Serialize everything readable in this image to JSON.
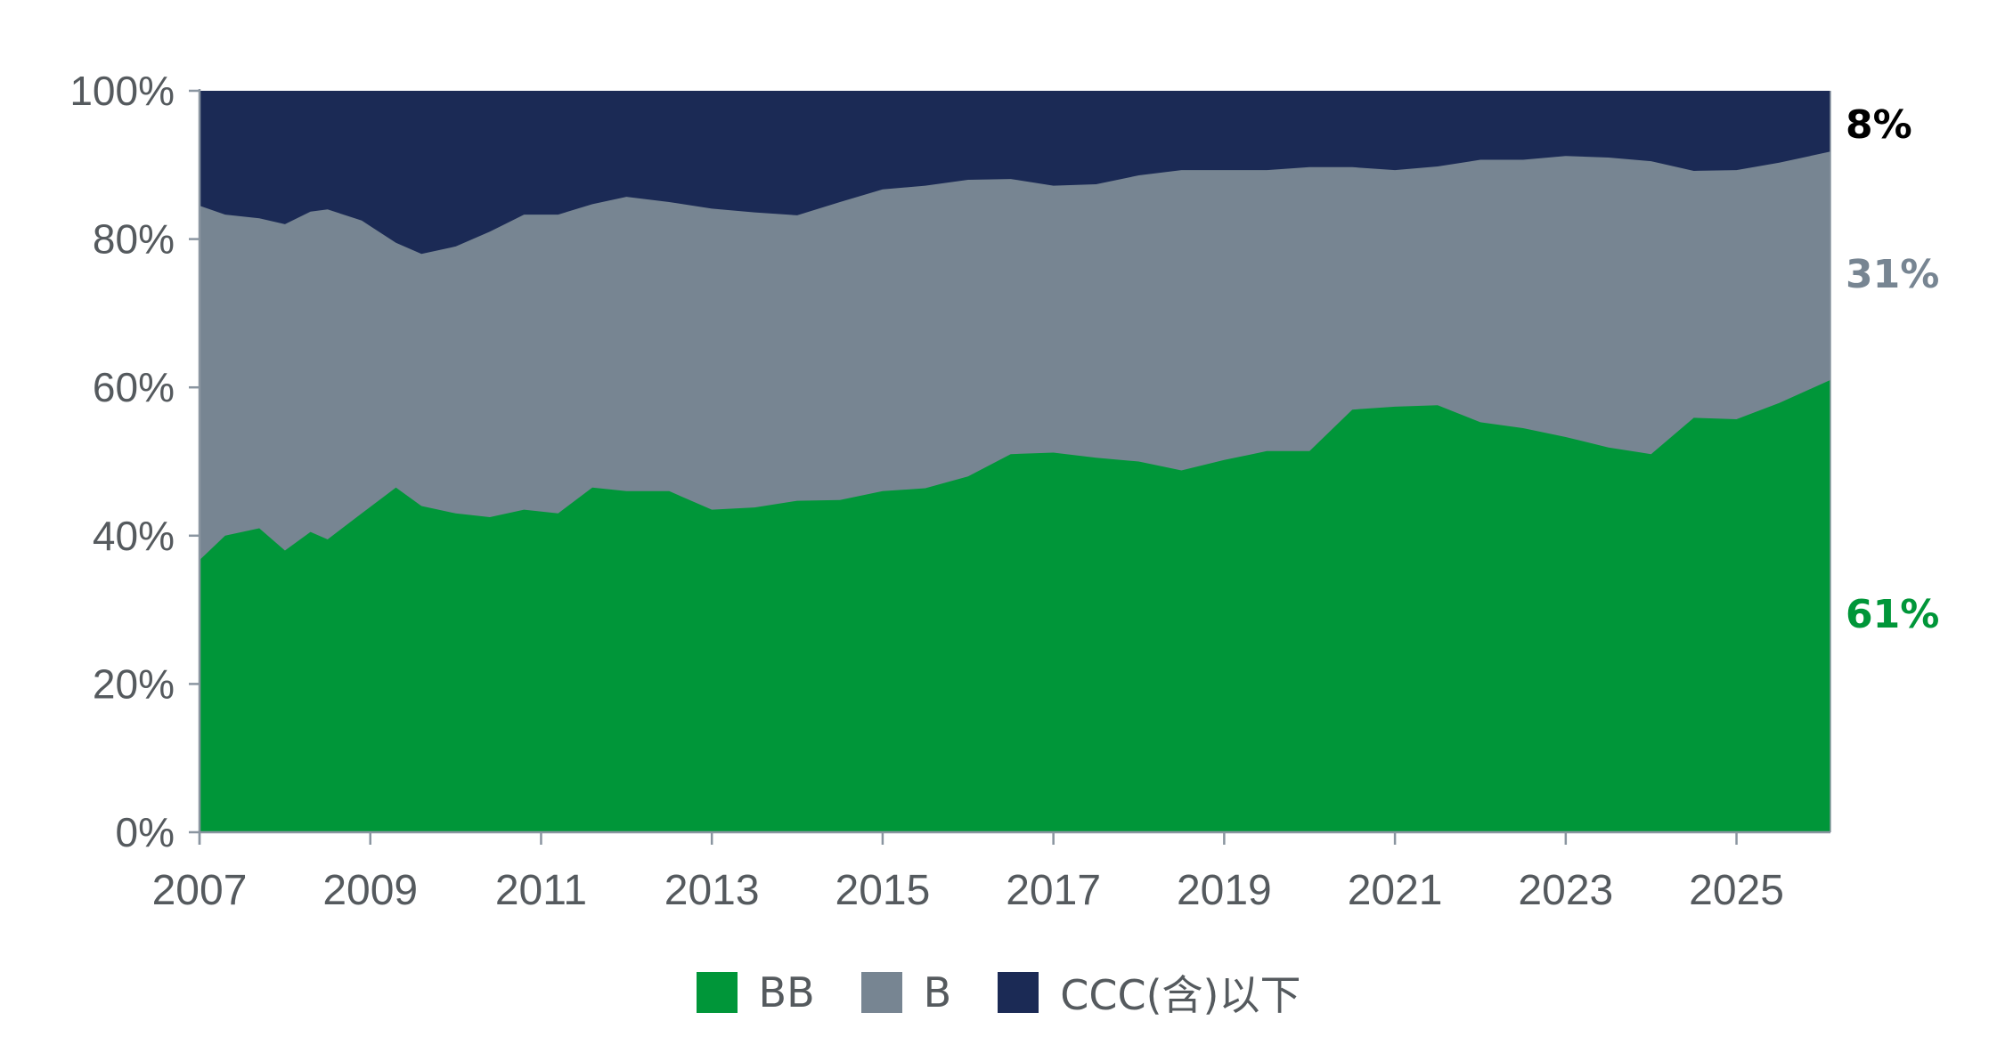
{
  "chart_data": {
    "type": "area",
    "stacked": true,
    "normalized": true,
    "title": "",
    "xlabel": "",
    "ylabel": "",
    "ylim": [
      0,
      100
    ],
    "xlim": [
      2007,
      2026.1
    ],
    "y_ticks": [
      "0%",
      "20%",
      "40%",
      "60%",
      "80%",
      "100%"
    ],
    "x_ticks": [
      "2007",
      "2009",
      "2011",
      "2013",
      "2015",
      "2017",
      "2019",
      "2021",
      "2023",
      "2025"
    ],
    "grid": false,
    "legend_position": "bottom",
    "x": [
      2007.0,
      2007.3,
      2007.7,
      2008.0,
      2008.3,
      2008.5,
      2008.9,
      2009.3,
      2009.6,
      2010.0,
      2010.4,
      2010.8,
      2011.2,
      2011.6,
      2012.0,
      2012.5,
      2013.0,
      2013.5,
      2014.0,
      2014.5,
      2015.0,
      2015.5,
      2016.0,
      2016.5,
      2017.0,
      2017.5,
      2018.0,
      2018.5,
      2019.0,
      2019.5,
      2020.0,
      2020.5,
      2021.0,
      2021.5,
      2022.0,
      2022.5,
      2023.0,
      2023.5,
      2024.0,
      2024.5,
      2025.0,
      2025.5,
      2026.0
    ],
    "series": [
      {
        "name": "BB",
        "color": "#009639",
        "values": [
          36.7,
          40,
          41,
          38,
          40.5,
          39.5,
          43,
          46.5,
          44,
          43,
          42.5,
          43.5,
          43,
          46.5,
          46,
          46,
          43.5,
          43.8,
          44.7,
          44.8,
          46,
          46.4,
          48,
          51,
          51.2,
          50.5,
          50,
          48.8,
          50.2,
          51.4,
          51.4,
          57,
          57.4,
          57.6,
          55.3,
          54.5,
          53.3,
          51.9,
          51,
          55.9,
          55.7,
          57.9,
          61
        ]
      },
      {
        "name": "B",
        "color": "#778592",
        "values": [
          47.8,
          43.3,
          41.8,
          44,
          43.2,
          44.5,
          39.5,
          33,
          34,
          36,
          38.5,
          39.8,
          40.3,
          38.2,
          39.7,
          39,
          40.6,
          39.8,
          38.5,
          40.2,
          40.7,
          40.8,
          40,
          37.1,
          36,
          36.9,
          38.6,
          40.5,
          39.1,
          37.9,
          38.3,
          32.7,
          31.9,
          32.2,
          35.4,
          36.2,
          37.9,
          39.1,
          39.5,
          33.3,
          33.6,
          32.4,
          30.8
        ]
      },
      {
        "name": "CCC(含)以下",
        "color": "#1b2a55",
        "values": [
          15.5,
          16.7,
          17.2,
          18,
          16.3,
          16,
          17.5,
          20.5,
          22,
          21,
          19,
          16.7,
          16.7,
          15.3,
          14.3,
          15,
          15.9,
          16.4,
          16.8,
          15,
          13.3,
          12.8,
          12,
          11.9,
          12.8,
          12.6,
          11.4,
          10.7,
          10.7,
          10.7,
          10.3,
          10.3,
          10.7,
          10.2,
          9.3,
          9.3,
          8.8,
          9,
          9.5,
          10.8,
          10.7,
          9.7,
          8.2
        ]
      }
    ],
    "end_labels": [
      {
        "series": "CCC(含)以下",
        "text": "8%",
        "color": "#000000"
      },
      {
        "series": "B",
        "text": "31%",
        "color": "#778592"
      },
      {
        "series": "BB",
        "text": "61%",
        "color": "#009639"
      }
    ]
  },
  "legend": {
    "items": [
      {
        "label": "BB",
        "color": "#009639"
      },
      {
        "label": "B",
        "color": "#778592"
      },
      {
        "label": "CCC(含)以下",
        "color": "#1b2a55"
      }
    ]
  },
  "axis": {
    "color": "#8a95a0",
    "text_color": "#555a5e"
  }
}
